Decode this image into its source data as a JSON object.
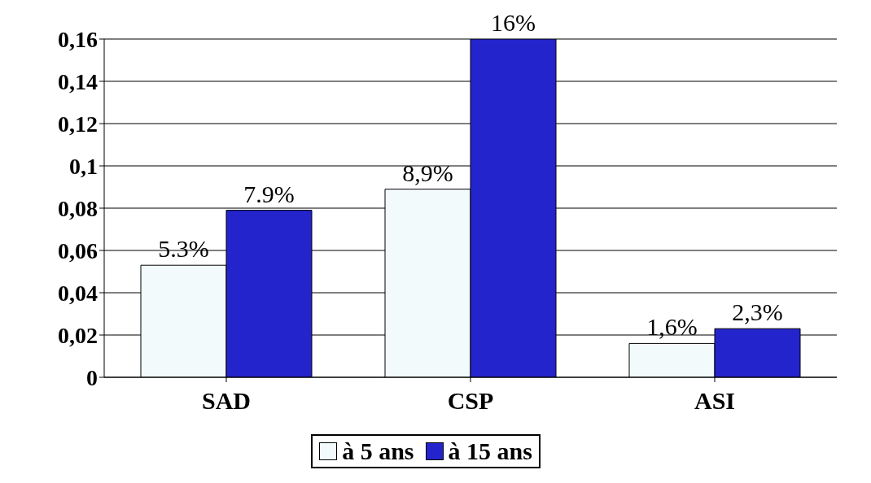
{
  "chart_data": {
    "type": "bar",
    "categories": [
      "SAD",
      "CSP",
      "ASI"
    ],
    "series": [
      {
        "name": "à 5 ans",
        "color": "#f2fafc",
        "values": [
          0.053,
          0.089,
          0.016
        ],
        "value_labels": [
          "5.3%",
          "8,9%",
          "1,6%"
        ]
      },
      {
        "name": "à 15 ans",
        "color": "#2424cc",
        "values": [
          0.079,
          0.16,
          0.023
        ],
        "value_labels": [
          "7.9%",
          "16%",
          "2,3%"
        ]
      }
    ],
    "ylim": [
      0,
      0.16
    ],
    "yticks": [
      0,
      {
        "value": 0.02,
        "label": "0,02"
      },
      {
        "value": 0.04,
        "label": "0,04"
      },
      {
        "value": 0.06,
        "label": "0,06"
      },
      {
        "value": 0.08,
        "label": "0,08"
      },
      {
        "value": 0.1,
        "label": "0,1"
      },
      {
        "value": 0.12,
        "label": "0,12"
      },
      {
        "value": 0.14,
        "label": "0,14"
      },
      {
        "value": 0.16,
        "label": "0,16"
      }
    ],
    "grid": "y",
    "legend": "bottom"
  }
}
